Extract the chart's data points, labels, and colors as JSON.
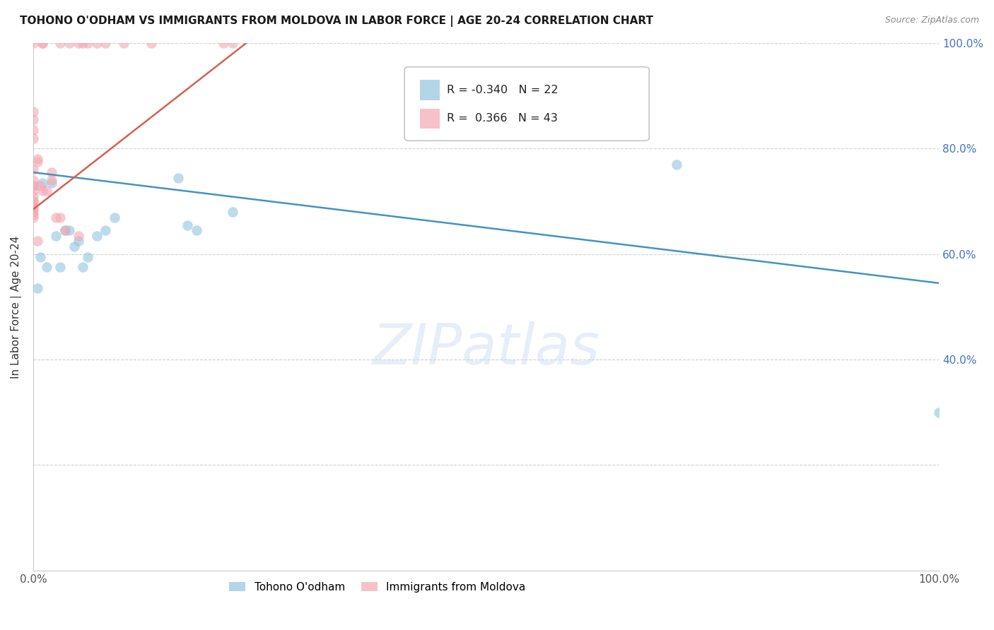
{
  "title": "TOHONO O'ODHAM VS IMMIGRANTS FROM MOLDOVA IN LABOR FORCE | AGE 20-24 CORRELATION CHART",
  "source": "Source: ZipAtlas.com",
  "ylabel": "In Labor Force | Age 20-24",
  "xlim": [
    0.0,
    1.0
  ],
  "ylim": [
    0.0,
    1.0
  ],
  "legend_labels": [
    "Tohono O'odham",
    "Immigrants from Moldova"
  ],
  "blue_color": "#92c5de",
  "pink_color": "#f4a7b2",
  "blue_line_color": "#4393c3",
  "pink_line_color": "#d6604d",
  "r_blue": -0.34,
  "n_blue": 22,
  "r_pink": 0.366,
  "n_pink": 43,
  "watermark": "ZIPatlas",
  "blue_scatter_x": [
    0.005,
    0.008,
    0.01,
    0.015,
    0.02,
    0.025,
    0.03,
    0.035,
    0.04,
    0.045,
    0.05,
    0.055,
    0.06,
    0.07,
    0.08,
    0.09,
    0.16,
    0.17,
    0.18,
    0.22,
    0.71,
    1.0
  ],
  "blue_scatter_y": [
    0.535,
    0.595,
    0.735,
    0.575,
    0.735,
    0.635,
    0.575,
    0.645,
    0.645,
    0.615,
    0.625,
    0.575,
    0.595,
    0.635,
    0.645,
    0.67,
    0.745,
    0.655,
    0.645,
    0.68,
    0.77,
    0.3
  ],
  "pink_scatter_x": [
    0.0,
    0.0,
    0.0,
    0.0,
    0.0,
    0.0,
    0.0,
    0.0,
    0.0,
    0.0,
    0.0,
    0.0,
    0.0,
    0.0,
    0.0,
    0.0,
    0.0,
    0.0,
    0.005,
    0.005,
    0.005,
    0.008,
    0.01,
    0.01,
    0.01,
    0.015,
    0.02,
    0.02,
    0.025,
    0.03,
    0.03,
    0.035,
    0.04,
    0.05,
    0.05,
    0.055,
    0.06,
    0.07,
    0.08,
    0.1,
    0.13,
    0.21,
    0.22
  ],
  "pink_scatter_y": [
    0.74,
    0.73,
    0.73,
    0.72,
    0.71,
    0.7,
    0.7,
    0.69,
    0.685,
    0.68,
    0.675,
    0.67,
    0.76,
    0.82,
    0.835,
    0.855,
    0.87,
    1.0,
    0.78,
    0.775,
    0.625,
    0.73,
    0.72,
    1.0,
    1.0,
    0.72,
    0.74,
    0.755,
    0.67,
    0.67,
    1.0,
    0.645,
    1.0,
    0.635,
    1.0,
    1.0,
    1.0,
    1.0,
    1.0,
    1.0,
    1.0,
    1.0,
    1.0
  ],
  "blue_trend_x": [
    0.0,
    1.0
  ],
  "blue_trend_y": [
    0.755,
    0.545
  ],
  "pink_trend_x": [
    0.0,
    0.235
  ],
  "pink_trend_y": [
    0.685,
    1.0
  ],
  "right_yticks": [
    0.4,
    0.6,
    0.8,
    1.0
  ],
  "right_yticklabels": [
    "40.0%",
    "60.0%",
    "80.0%",
    "100.0%"
  ],
  "xtick_positions": [
    0.0,
    1.0
  ],
  "xtick_labels": [
    "0.0%",
    "100.0%"
  ]
}
